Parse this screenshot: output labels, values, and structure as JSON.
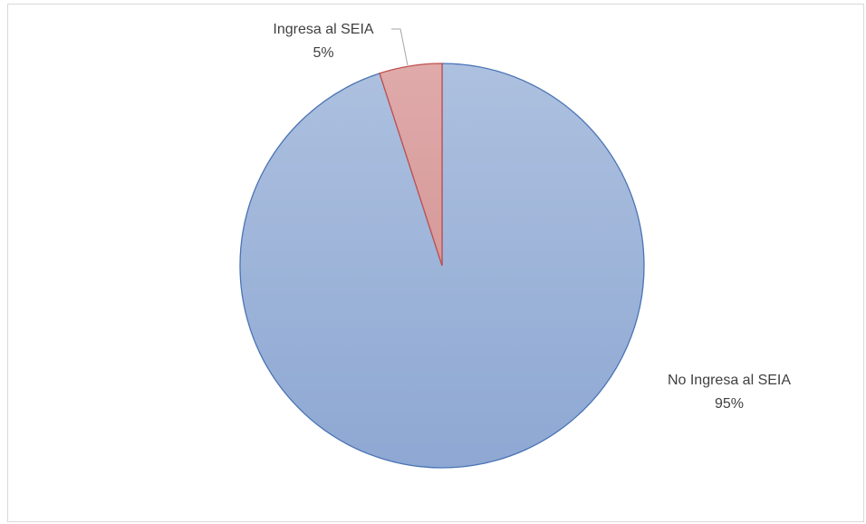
{
  "chart_data": {
    "type": "pie",
    "title": "",
    "slices": [
      {
        "label": "No Ingresa al SEIA",
        "value": 95,
        "percent_label": "95%",
        "color": "#9bb3da",
        "stroke": "#4a74b5"
      },
      {
        "label": "Ingresa al SEIA",
        "value": 5,
        "percent_label": "5%",
        "color": "#dba1a1",
        "stroke": "#c0504d"
      }
    ],
    "start_angle_deg": 0,
    "direction": "clockwise",
    "legend": "none",
    "data_labels": "outside, label and percent"
  }
}
